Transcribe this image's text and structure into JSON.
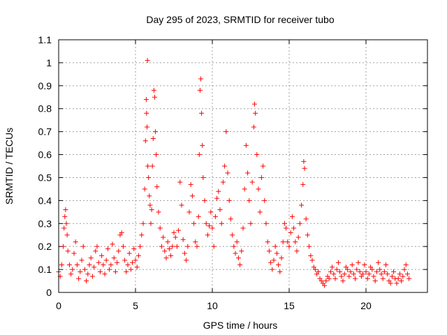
{
  "chart_data": {
    "type": "scatter",
    "title": "Day 295 of 2023, SRMTID for receiver tubo",
    "xlabel": "GPS time / hours",
    "ylabel": "SRMTID / TECUs",
    "xlim": [
      0,
      24
    ],
    "ylim": [
      0,
      1.1
    ],
    "xticks": [
      0,
      5,
      10,
      15,
      20
    ],
    "xtick_labels": [
      "0",
      "5",
      "10",
      "15",
      "20"
    ],
    "yticks": [
      0,
      0.1,
      0.2,
      0.3,
      0.4,
      0.5,
      0.6,
      0.7,
      0.8,
      0.9,
      1,
      1.1
    ],
    "ytick_labels": [
      "0",
      "0.1",
      "0.2",
      "0.3",
      "0.4",
      "0.5",
      "0.6",
      "0.7",
      "0.8",
      "0.9",
      "1",
      "1.1"
    ],
    "grid": true,
    "marker": "+",
    "color": "#ff0000",
    "series": [
      {
        "name": "SRMTID",
        "points": [
          [
            0.0,
            0.09
          ],
          [
            0.1,
            0.07
          ],
          [
            0.2,
            0.12
          ],
          [
            0.3,
            0.2
          ],
          [
            0.35,
            0.28
          ],
          [
            0.4,
            0.33
          ],
          [
            0.45,
            0.36
          ],
          [
            0.5,
            0.3
          ],
          [
            0.55,
            0.25
          ],
          [
            0.6,
            0.18
          ],
          [
            0.7,
            0.12
          ],
          [
            0.8,
            0.08
          ],
          [
            0.9,
            0.1
          ],
          [
            1.0,
            0.17
          ],
          [
            1.1,
            0.22
          ],
          [
            1.2,
            0.12
          ],
          [
            1.3,
            0.06
          ],
          [
            1.4,
            0.09
          ],
          [
            1.5,
            0.14
          ],
          [
            1.6,
            0.2
          ],
          [
            1.7,
            0.1
          ],
          [
            1.8,
            0.05
          ],
          [
            1.9,
            0.08
          ],
          [
            2.0,
            0.12
          ],
          [
            2.1,
            0.15
          ],
          [
            2.2,
            0.07
          ],
          [
            2.3,
            0.11
          ],
          [
            2.4,
            0.18
          ],
          [
            2.5,
            0.2
          ],
          [
            2.6,
            0.13
          ],
          [
            2.7,
            0.09
          ],
          [
            2.8,
            0.16
          ],
          [
            2.9,
            0.12
          ],
          [
            3.0,
            0.08
          ],
          [
            3.1,
            0.14
          ],
          [
            3.2,
            0.19
          ],
          [
            3.3,
            0.1
          ],
          [
            3.4,
            0.12
          ],
          [
            3.5,
            0.21
          ],
          [
            3.6,
            0.15
          ],
          [
            3.7,
            0.09
          ],
          [
            3.8,
            0.13
          ],
          [
            3.9,
            0.18
          ],
          [
            4.0,
            0.25
          ],
          [
            4.1,
            0.26
          ],
          [
            4.2,
            0.2
          ],
          [
            4.3,
            0.14
          ],
          [
            4.4,
            0.09
          ],
          [
            4.5,
            0.12
          ],
          [
            4.6,
            0.17
          ],
          [
            4.7,
            0.1
          ],
          [
            4.8,
            0.13
          ],
          [
            4.9,
            0.19
          ],
          [
            5.0,
            0.14
          ],
          [
            5.1,
            0.11
          ],
          [
            5.2,
            0.16
          ],
          [
            5.3,
            0.2
          ],
          [
            5.4,
            0.25
          ],
          [
            5.5,
            0.3
          ],
          [
            5.6,
            0.45
          ],
          [
            5.65,
            0.66
          ],
          [
            5.7,
            0.84
          ],
          [
            5.72,
            0.78
          ],
          [
            5.75,
            0.72
          ],
          [
            5.78,
            1.01
          ],
          [
            5.8,
            0.55
          ],
          [
            5.85,
            0.5
          ],
          [
            5.9,
            0.42
          ],
          [
            5.95,
            0.38
          ],
          [
            6.0,
            0.3
          ],
          [
            6.05,
            0.36
          ],
          [
            6.1,
            0.55
          ],
          [
            6.15,
            0.67
          ],
          [
            6.2,
            0.88
          ],
          [
            6.25,
            0.85
          ],
          [
            6.3,
            0.7
          ],
          [
            6.35,
            0.6
          ],
          [
            6.4,
            0.46
          ],
          [
            6.5,
            0.35
          ],
          [
            6.6,
            0.28
          ],
          [
            6.7,
            0.2
          ],
          [
            6.8,
            0.24
          ],
          [
            6.9,
            0.18
          ],
          [
            7.0,
            0.15
          ],
          [
            7.1,
            0.22
          ],
          [
            7.2,
            0.19
          ],
          [
            7.3,
            0.16
          ],
          [
            7.4,
            0.2
          ],
          [
            7.5,
            0.26
          ],
          [
            7.6,
            0.24
          ],
          [
            7.7,
            0.2
          ],
          [
            7.8,
            0.27
          ],
          [
            7.9,
            0.48
          ],
          [
            8.0,
            0.38
          ],
          [
            8.1,
            0.23
          ],
          [
            8.2,
            0.17
          ],
          [
            8.3,
            0.14
          ],
          [
            8.4,
            0.2
          ],
          [
            8.5,
            0.35
          ],
          [
            8.6,
            0.47
          ],
          [
            8.7,
            0.42
          ],
          [
            8.8,
            0.3
          ],
          [
            8.9,
            0.22
          ],
          [
            9.0,
            0.2
          ],
          [
            9.1,
            0.33
          ],
          [
            9.15,
            0.6
          ],
          [
            9.2,
            0.88
          ],
          [
            9.25,
            0.93
          ],
          [
            9.3,
            0.78
          ],
          [
            9.35,
            0.64
          ],
          [
            9.4,
            0.5
          ],
          [
            9.5,
            0.4
          ],
          [
            9.6,
            0.3
          ],
          [
            9.7,
            0.25
          ],
          [
            9.8,
            0.29
          ],
          [
            9.9,
            0.35
          ],
          [
            10.0,
            0.28
          ],
          [
            10.1,
            0.2
          ],
          [
            10.2,
            0.33
          ],
          [
            10.3,
            0.41
          ],
          [
            10.4,
            0.44
          ],
          [
            10.5,
            0.36
          ],
          [
            10.6,
            0.3
          ],
          [
            10.7,
            0.48
          ],
          [
            10.8,
            0.55
          ],
          [
            10.9,
            0.7
          ],
          [
            11.0,
            0.52
          ],
          [
            11.1,
            0.4
          ],
          [
            11.2,
            0.32
          ],
          [
            11.3,
            0.25
          ],
          [
            11.4,
            0.2
          ],
          [
            11.5,
            0.17
          ],
          [
            11.6,
            0.22
          ],
          [
            11.7,
            0.15
          ],
          [
            11.8,
            0.12
          ],
          [
            11.9,
            0.18
          ],
          [
            12.0,
            0.28
          ],
          [
            12.1,
            0.45
          ],
          [
            12.2,
            0.64
          ],
          [
            12.3,
            0.52
          ],
          [
            12.4,
            0.4
          ],
          [
            12.5,
            0.3
          ],
          [
            12.6,
            0.48
          ],
          [
            12.7,
            0.72
          ],
          [
            12.75,
            0.82
          ],
          [
            12.8,
            0.78
          ],
          [
            12.9,
            0.6
          ],
          [
            13.0,
            0.45
          ],
          [
            13.1,
            0.35
          ],
          [
            13.2,
            0.5
          ],
          [
            13.3,
            0.55
          ],
          [
            13.4,
            0.4
          ],
          [
            13.5,
            0.3
          ],
          [
            13.6,
            0.22
          ],
          [
            13.7,
            0.18
          ],
          [
            13.8,
            0.13
          ],
          [
            13.9,
            0.1
          ],
          [
            14.0,
            0.14
          ],
          [
            14.1,
            0.2
          ],
          [
            14.2,
            0.17
          ],
          [
            14.3,
            0.12
          ],
          [
            14.4,
            0.09
          ],
          [
            14.5,
            0.15
          ],
          [
            14.6,
            0.22
          ],
          [
            14.7,
            0.3
          ],
          [
            14.8,
            0.28
          ],
          [
            14.9,
            0.22
          ],
          [
            15.0,
            0.2
          ],
          [
            15.1,
            0.26
          ],
          [
            15.2,
            0.33
          ],
          [
            15.3,
            0.28
          ],
          [
            15.4,
            0.22
          ],
          [
            15.5,
            0.18
          ],
          [
            15.6,
            0.24
          ],
          [
            15.7,
            0.3
          ],
          [
            15.8,
            0.38
          ],
          [
            15.9,
            0.47
          ],
          [
            15.95,
            0.57
          ],
          [
            16.0,
            0.54
          ],
          [
            16.1,
            0.32
          ],
          [
            16.2,
            0.25
          ],
          [
            16.3,
            0.2
          ],
          [
            16.4,
            0.16
          ],
          [
            16.5,
            0.14
          ],
          [
            16.6,
            0.11
          ],
          [
            16.7,
            0.1
          ],
          [
            16.8,
            0.08
          ],
          [
            16.9,
            0.09
          ],
          [
            17.0,
            0.06
          ],
          [
            17.1,
            0.05
          ],
          [
            17.2,
            0.04
          ],
          [
            17.3,
            0.03
          ],
          [
            17.4,
            0.05
          ],
          [
            17.5,
            0.07
          ],
          [
            17.6,
            0.06
          ],
          [
            17.7,
            0.09
          ],
          [
            17.8,
            0.11
          ],
          [
            17.9,
            0.08
          ],
          [
            18.0,
            0.06
          ],
          [
            18.1,
            0.1
          ],
          [
            18.2,
            0.13
          ],
          [
            18.3,
            0.09
          ],
          [
            18.4,
            0.07
          ],
          [
            18.5,
            0.05
          ],
          [
            18.6,
            0.08
          ],
          [
            18.7,
            0.11
          ],
          [
            18.8,
            0.1
          ],
          [
            18.9,
            0.07
          ],
          [
            19.0,
            0.09
          ],
          [
            19.1,
            0.12
          ],
          [
            19.2,
            0.08
          ],
          [
            19.3,
            0.06
          ],
          [
            19.4,
            0.1
          ],
          [
            19.5,
            0.13
          ],
          [
            19.6,
            0.09
          ],
          [
            19.7,
            0.07
          ],
          [
            19.8,
            0.08
          ],
          [
            19.9,
            0.12
          ],
          [
            20.0,
            0.09
          ],
          [
            20.1,
            0.06
          ],
          [
            20.2,
            0.08
          ],
          [
            20.3,
            0.11
          ],
          [
            20.4,
            0.1
          ],
          [
            20.5,
            0.07
          ],
          [
            20.6,
            0.05
          ],
          [
            20.7,
            0.09
          ],
          [
            20.8,
            0.13
          ],
          [
            20.9,
            0.1
          ],
          [
            21.0,
            0.08
          ],
          [
            21.1,
            0.06
          ],
          [
            21.2,
            0.09
          ],
          [
            21.3,
            0.12
          ],
          [
            21.4,
            0.08
          ],
          [
            21.5,
            0.05
          ],
          [
            21.6,
            0.04
          ],
          [
            21.7,
            0.07
          ],
          [
            21.8,
            0.09
          ],
          [
            21.9,
            0.06
          ],
          [
            22.0,
            0.04
          ],
          [
            22.1,
            0.06
          ],
          [
            22.2,
            0.08
          ],
          [
            22.3,
            0.05
          ],
          [
            22.4,
            0.07
          ],
          [
            22.5,
            0.1
          ],
          [
            22.6,
            0.12
          ],
          [
            22.7,
            0.08
          ],
          [
            22.8,
            0.06
          ]
        ]
      }
    ]
  }
}
